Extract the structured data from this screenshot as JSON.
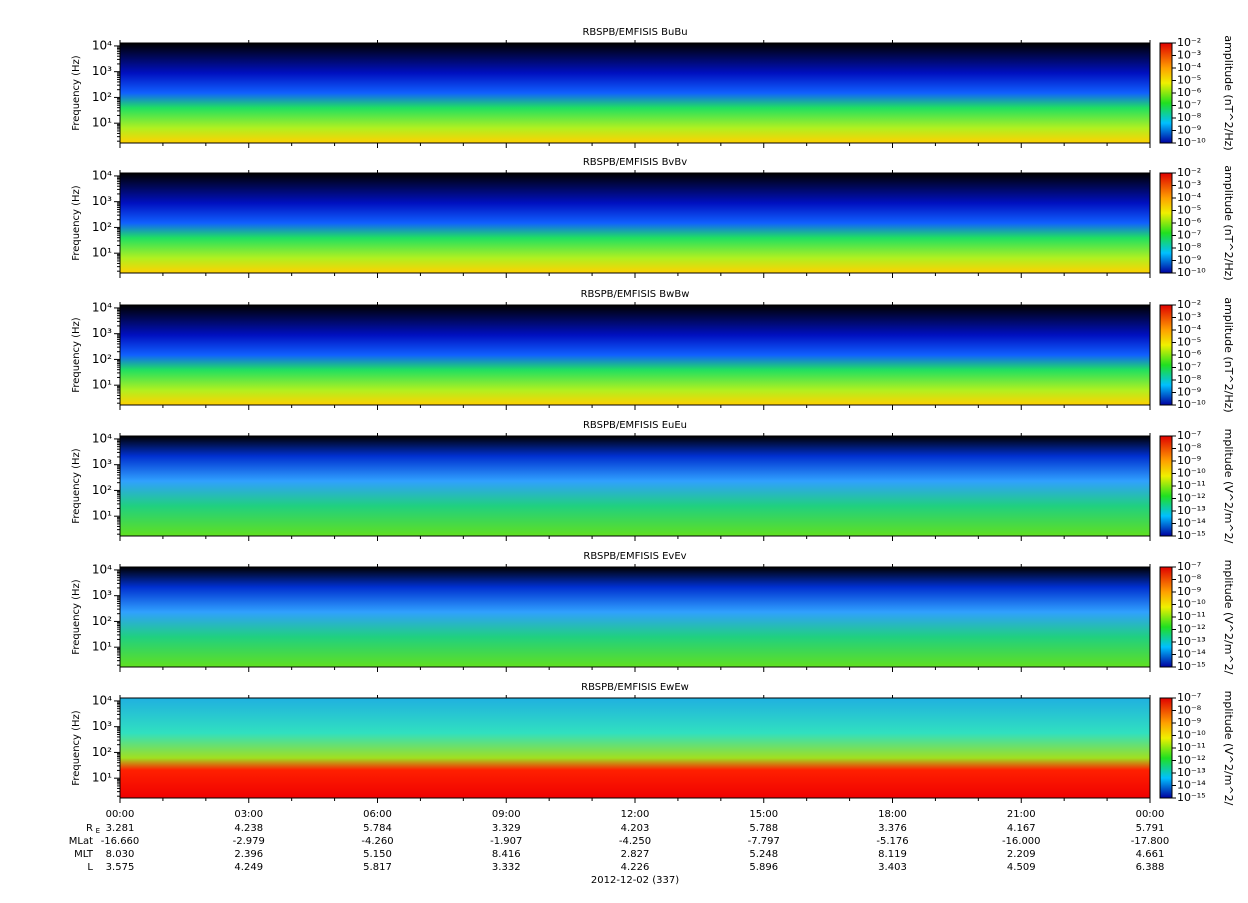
{
  "chart_data": [
    {
      "type": "heatmap",
      "title": "RBSPB/EMFISIS  BuBu",
      "ylabel": "Frequency (Hz)",
      "log_y": true,
      "ylim": [
        1.7,
        13000
      ],
      "yticks": [
        {
          "value": 10,
          "label": "10¹"
        },
        {
          "value": 100,
          "label": "10²"
        },
        {
          "value": 1000,
          "label": "10³"
        },
        {
          "value": 10000,
          "label": "10⁴"
        }
      ],
      "colorbar_label": "amplitude (nT^2/Hz)",
      "colorbar_lim": [
        1e-10,
        0.01
      ],
      "colorbar_ticks": [
        {
          "value": 0.01,
          "label": "10⁻²"
        },
        {
          "value": 0.001,
          "label": "10⁻³"
        },
        {
          "value": 0.0001,
          "label": "10⁻⁴"
        },
        {
          "value": 1e-05,
          "label": "10⁻⁵"
        },
        {
          "value": 1e-06,
          "label": "10⁻⁶"
        },
        {
          "value": 1e-07,
          "label": "10⁻⁷"
        },
        {
          "value": 1e-08,
          "label": "10⁻⁸"
        },
        {
          "value": 1e-09,
          "label": "10⁻⁹"
        },
        {
          "value": 1e-10,
          "label": "10⁻¹⁰"
        }
      ]
    },
    {
      "type": "heatmap",
      "title": "RBSPB/EMFISIS  BvBv",
      "ylabel": "Frequency (Hz)",
      "log_y": true,
      "ylim": [
        1.7,
        13000
      ],
      "yticks": [
        {
          "value": 10,
          "label": "10¹"
        },
        {
          "value": 100,
          "label": "10²"
        },
        {
          "value": 1000,
          "label": "10³"
        },
        {
          "value": 10000,
          "label": "10⁴"
        }
      ],
      "colorbar_label": "amplitude (nT^2/Hz)",
      "colorbar_lim": [
        1e-10,
        0.01
      ],
      "colorbar_ticks": [
        {
          "value": 0.01,
          "label": "10⁻²"
        },
        {
          "value": 0.001,
          "label": "10⁻³"
        },
        {
          "value": 0.0001,
          "label": "10⁻⁴"
        },
        {
          "value": 1e-05,
          "label": "10⁻⁵"
        },
        {
          "value": 1e-06,
          "label": "10⁻⁶"
        },
        {
          "value": 1e-07,
          "label": "10⁻⁷"
        },
        {
          "value": 1e-08,
          "label": "10⁻⁸"
        },
        {
          "value": 1e-09,
          "label": "10⁻⁹"
        },
        {
          "value": 1e-10,
          "label": "10⁻¹⁰"
        }
      ]
    },
    {
      "type": "heatmap",
      "title": "RBSPB/EMFISIS  BwBw",
      "ylabel": "Frequency (Hz)",
      "log_y": true,
      "ylim": [
        1.7,
        13000
      ],
      "yticks": [
        {
          "value": 10,
          "label": "10¹"
        },
        {
          "value": 100,
          "label": "10²"
        },
        {
          "value": 1000,
          "label": "10³"
        },
        {
          "value": 10000,
          "label": "10⁴"
        }
      ],
      "colorbar_label": "amplitude (nT^2/Hz)",
      "colorbar_lim": [
        1e-10,
        0.01
      ],
      "colorbar_ticks": [
        {
          "value": 0.01,
          "label": "10⁻²"
        },
        {
          "value": 0.001,
          "label": "10⁻³"
        },
        {
          "value": 0.0001,
          "label": "10⁻⁴"
        },
        {
          "value": 1e-05,
          "label": "10⁻⁵"
        },
        {
          "value": 1e-06,
          "label": "10⁻⁶"
        },
        {
          "value": 1e-07,
          "label": "10⁻⁷"
        },
        {
          "value": 1e-08,
          "label": "10⁻⁸"
        },
        {
          "value": 1e-09,
          "label": "10⁻⁹"
        },
        {
          "value": 1e-10,
          "label": "10⁻¹⁰"
        }
      ]
    },
    {
      "type": "heatmap",
      "title": "RBSPB/EMFISIS  EuEu",
      "ylabel": "Frequency (Hz)",
      "log_y": true,
      "ylim": [
        1.7,
        13000
      ],
      "yticks": [
        {
          "value": 10,
          "label": "10¹"
        },
        {
          "value": 100,
          "label": "10²"
        },
        {
          "value": 1000,
          "label": "10³"
        },
        {
          "value": 10000,
          "label": "10⁴"
        }
      ],
      "colorbar_label": "mplitude (V^2/m^2/",
      "colorbar_lim": [
        1e-15,
        1e-07
      ],
      "colorbar_ticks": [
        {
          "value": 1e-07,
          "label": "10⁻⁷"
        },
        {
          "value": 1e-08,
          "label": "10⁻⁸"
        },
        {
          "value": 1e-09,
          "label": "10⁻⁹"
        },
        {
          "value": 1e-10,
          "label": "10⁻¹⁰"
        },
        {
          "value": 1e-11,
          "label": "10⁻¹¹"
        },
        {
          "value": 1e-12,
          "label": "10⁻¹²"
        },
        {
          "value": 1e-13,
          "label": "10⁻¹³"
        },
        {
          "value": 1e-14,
          "label": "10⁻¹⁴"
        },
        {
          "value": 1e-15,
          "label": "10⁻¹⁵"
        }
      ]
    },
    {
      "type": "heatmap",
      "title": "RBSPB/EMFISIS  EvEv",
      "ylabel": "Frequency (Hz)",
      "log_y": true,
      "ylim": [
        1.7,
        13000
      ],
      "yticks": [
        {
          "value": 10,
          "label": "10¹"
        },
        {
          "value": 100,
          "label": "10²"
        },
        {
          "value": 1000,
          "label": "10³"
        },
        {
          "value": 10000,
          "label": "10⁴"
        }
      ],
      "colorbar_label": "mplitude (V^2/m^2/",
      "colorbar_lim": [
        1e-15,
        1e-07
      ],
      "colorbar_ticks": [
        {
          "value": 1e-07,
          "label": "10⁻⁷"
        },
        {
          "value": 1e-08,
          "label": "10⁻⁸"
        },
        {
          "value": 1e-09,
          "label": "10⁻⁹"
        },
        {
          "value": 1e-10,
          "label": "10⁻¹⁰"
        },
        {
          "value": 1e-11,
          "label": "10⁻¹¹"
        },
        {
          "value": 1e-12,
          "label": "10⁻¹²"
        },
        {
          "value": 1e-13,
          "label": "10⁻¹³"
        },
        {
          "value": 1e-14,
          "label": "10⁻¹⁴"
        },
        {
          "value": 1e-15,
          "label": "10⁻¹⁵"
        }
      ]
    },
    {
      "type": "heatmap",
      "title": "RBSPB/EMFISIS  EwEw",
      "ylabel": "Frequency (Hz)",
      "log_y": true,
      "ylim": [
        1.7,
        13000
      ],
      "yticks": [
        {
          "value": 10,
          "label": "10¹"
        },
        {
          "value": 100,
          "label": "10²"
        },
        {
          "value": 1000,
          "label": "10³"
        },
        {
          "value": 10000,
          "label": "10⁴"
        }
      ],
      "colorbar_label": "mplitude (V^2/m^2/",
      "colorbar_lim": [
        1e-15,
        1e-07
      ],
      "colorbar_ticks": [
        {
          "value": 1e-07,
          "label": "10⁻⁷"
        },
        {
          "value": 1e-08,
          "label": "10⁻⁸"
        },
        {
          "value": 1e-09,
          "label": "10⁻⁹"
        },
        {
          "value": 1e-10,
          "label": "10⁻¹⁰"
        },
        {
          "value": 1e-11,
          "label": "10⁻¹¹"
        },
        {
          "value": 1e-12,
          "label": "10⁻¹²"
        },
        {
          "value": 1e-13,
          "label": "10⁻¹³"
        },
        {
          "value": 1e-14,
          "label": "10⁻¹⁴"
        },
        {
          "value": 1e-15,
          "label": "10⁻¹⁵"
        }
      ]
    }
  ],
  "x_axis": {
    "xlim": [
      0,
      24
    ],
    "xticks": [
      {
        "value": 0,
        "label": "00:00"
      },
      {
        "value": 3,
        "label": "03:00"
      },
      {
        "value": 6,
        "label": "06:00"
      },
      {
        "value": 9,
        "label": "09:00"
      },
      {
        "value": 12,
        "label": "12:00"
      },
      {
        "value": 15,
        "label": "15:00"
      },
      {
        "value": 18,
        "label": "18:00"
      },
      {
        "value": 21,
        "label": "21:00"
      },
      {
        "value": 24,
        "label": "00:00"
      }
    ],
    "date_label": "2012-12-02 (337)"
  },
  "ephemeris": [
    {
      "label": "R",
      "sub": "E",
      "values": [
        "3.281",
        "4.238",
        "5.784",
        "3.329",
        "4.203",
        "5.788",
        "3.376",
        "4.167",
        "5.791"
      ]
    },
    {
      "label": "MLat",
      "values": [
        "-16.660",
        "-2.979",
        "-4.260",
        "-1.907",
        "-4.250",
        "-7.797",
        "-5.176",
        "-16.000",
        "-17.800"
      ]
    },
    {
      "label": "MLT",
      "values": [
        "8.030",
        "2.396",
        "5.150",
        "8.416",
        "2.827",
        "5.248",
        "8.119",
        "2.209",
        "4.661"
      ]
    },
    {
      "label": "L",
      "values": [
        "3.575",
        "4.249",
        "5.817",
        "3.332",
        "4.226",
        "5.896",
        "3.403",
        "4.509",
        "6.388"
      ]
    }
  ]
}
